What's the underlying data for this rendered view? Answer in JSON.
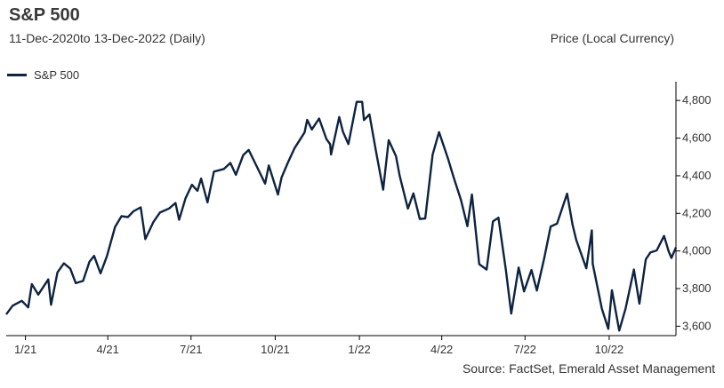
{
  "chart_data": {
    "type": "line",
    "title": "S&P 500",
    "subtitle": "11-Dec-2020to 13-Dec-2022 (Daily)",
    "ylabel": "Price (Local Currency)",
    "xlabel": "",
    "source": "Source:  FactSet,  Emerald Asset Management",
    "legend_position": "top-left",
    "grid": false,
    "colors": {
      "line": "#0e2341",
      "axis": "#000000"
    },
    "ylim": [
      3550,
      4900
    ],
    "yticks": [
      3600,
      3800,
      4000,
      4200,
      4400,
      4600,
      4800
    ],
    "ytick_labels": [
      "3,600",
      "3,800",
      "4,000",
      "4,200",
      "4,400",
      "4,600",
      "4,800"
    ],
    "xlim": [
      "2020-12-11",
      "2022-12-13"
    ],
    "xticks": [
      {
        "date": "2021-01-01",
        "label": "1/21"
      },
      {
        "date": "2021-04-01",
        "label": "4/21"
      },
      {
        "date": "2021-07-01",
        "label": "7/21"
      },
      {
        "date": "2021-10-01",
        "label": "10/21"
      },
      {
        "date": "2022-01-01",
        "label": "1/22"
      },
      {
        "date": "2022-04-01",
        "label": "4/22"
      },
      {
        "date": "2022-07-01",
        "label": "7/22"
      },
      {
        "date": "2022-10-01",
        "label": "10/22"
      }
    ],
    "series": [
      {
        "name": "S&P 500",
        "points": [
          [
            "2020-12-11",
            3663
          ],
          [
            "2020-12-18",
            3709
          ],
          [
            "2020-12-28",
            3735
          ],
          [
            "2021-01-04",
            3700
          ],
          [
            "2021-01-08",
            3824
          ],
          [
            "2021-01-15",
            3768
          ],
          [
            "2021-01-26",
            3849
          ],
          [
            "2021-01-29",
            3714
          ],
          [
            "2021-02-05",
            3886
          ],
          [
            "2021-02-12",
            3934
          ],
          [
            "2021-02-19",
            3906
          ],
          [
            "2021-02-25",
            3829
          ],
          [
            "2021-03-05",
            3841
          ],
          [
            "2021-03-12",
            3943
          ],
          [
            "2021-03-17",
            3974
          ],
          [
            "2021-03-24",
            3881
          ],
          [
            "2021-03-31",
            3972
          ],
          [
            "2021-04-09",
            4128
          ],
          [
            "2021-04-16",
            4185
          ],
          [
            "2021-04-23",
            4180
          ],
          [
            "2021-04-29",
            4211
          ],
          [
            "2021-05-07",
            4232
          ],
          [
            "2021-05-12",
            4063
          ],
          [
            "2021-05-21",
            4155
          ],
          [
            "2021-05-28",
            4204
          ],
          [
            "2021-06-07",
            4226
          ],
          [
            "2021-06-14",
            4255
          ],
          [
            "2021-06-18",
            4166
          ],
          [
            "2021-06-25",
            4280
          ],
          [
            "2021-07-02",
            4352
          ],
          [
            "2021-07-08",
            4320
          ],
          [
            "2021-07-12",
            4385
          ],
          [
            "2021-07-19",
            4258
          ],
          [
            "2021-07-26",
            4422
          ],
          [
            "2021-08-06",
            4436
          ],
          [
            "2021-08-13",
            4468
          ],
          [
            "2021-08-19",
            4405
          ],
          [
            "2021-08-27",
            4509
          ],
          [
            "2021-09-02",
            4537
          ],
          [
            "2021-09-10",
            4458
          ],
          [
            "2021-09-20",
            4358
          ],
          [
            "2021-09-24",
            4455
          ],
          [
            "2021-10-04",
            4300
          ],
          [
            "2021-10-08",
            4391
          ],
          [
            "2021-10-15",
            4471
          ],
          [
            "2021-10-22",
            4545
          ],
          [
            "2021-11-02",
            4630
          ],
          [
            "2021-11-05",
            4697
          ],
          [
            "2021-11-10",
            4646
          ],
          [
            "2021-11-18",
            4704
          ],
          [
            "2021-11-26",
            4595
          ],
          [
            "2021-11-30",
            4567
          ],
          [
            "2021-12-01",
            4513
          ],
          [
            "2021-12-10",
            4712
          ],
          [
            "2021-12-14",
            4634
          ],
          [
            "2021-12-20",
            4568
          ],
          [
            "2021-12-29",
            4793
          ],
          [
            "2022-01-04",
            4793
          ],
          [
            "2022-01-06",
            4696
          ],
          [
            "2022-01-12",
            4726
          ],
          [
            "2022-01-19",
            4533
          ],
          [
            "2022-01-27",
            4326
          ],
          [
            "2022-02-02",
            4589
          ],
          [
            "2022-02-10",
            4504
          ],
          [
            "2022-02-14",
            4401
          ],
          [
            "2022-02-23",
            4225
          ],
          [
            "2022-03-01",
            4306
          ],
          [
            "2022-03-08",
            4170
          ],
          [
            "2022-03-14",
            4173
          ],
          [
            "2022-03-22",
            4512
          ],
          [
            "2022-03-29",
            4632
          ],
          [
            "2022-04-08",
            4488
          ],
          [
            "2022-04-14",
            4392
          ],
          [
            "2022-04-22",
            4271
          ],
          [
            "2022-04-29",
            4132
          ],
          [
            "2022-05-04",
            4300
          ],
          [
            "2022-05-12",
            3930
          ],
          [
            "2022-05-20",
            3901
          ],
          [
            "2022-05-27",
            4158
          ],
          [
            "2022-06-02",
            4177
          ],
          [
            "2022-06-10",
            3901
          ],
          [
            "2022-06-16",
            3667
          ],
          [
            "2022-06-24",
            3912
          ],
          [
            "2022-06-30",
            3785
          ],
          [
            "2022-07-08",
            3899
          ],
          [
            "2022-07-14",
            3790
          ],
          [
            "2022-07-22",
            3962
          ],
          [
            "2022-07-29",
            4130
          ],
          [
            "2022-08-05",
            4145
          ],
          [
            "2022-08-16",
            4305
          ],
          [
            "2022-08-22",
            4138
          ],
          [
            "2022-08-26",
            4058
          ],
          [
            "2022-09-06",
            3908
          ],
          [
            "2022-09-12",
            4110
          ],
          [
            "2022-09-13",
            3932
          ],
          [
            "2022-09-23",
            3693
          ],
          [
            "2022-09-30",
            3586
          ],
          [
            "2022-10-04",
            3791
          ],
          [
            "2022-10-12",
            3577
          ],
          [
            "2022-10-19",
            3695
          ],
          [
            "2022-10-28",
            3901
          ],
          [
            "2022-11-03",
            3720
          ],
          [
            "2022-11-10",
            3956
          ],
          [
            "2022-11-15",
            3992
          ],
          [
            "2022-11-22",
            4003
          ],
          [
            "2022-11-30",
            4080
          ],
          [
            "2022-12-05",
            3998
          ],
          [
            "2022-12-08",
            3963
          ],
          [
            "2022-12-13",
            4019
          ]
        ]
      }
    ]
  }
}
